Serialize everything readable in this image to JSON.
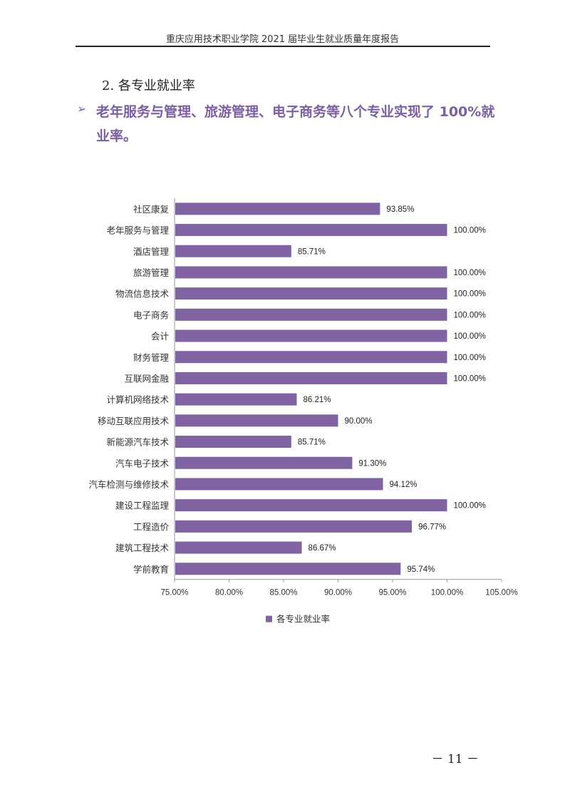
{
  "header": {
    "title": "重庆应用技术职业学院 2021 届毕业生就业质量年度报告"
  },
  "section": {
    "heading": "2. 各专业就业率",
    "highlight": "老年服务与管理、旅游管理、电子商务等八个专业实现了 100%就业率。"
  },
  "chart_data": {
    "type": "bar",
    "orientation": "horizontal",
    "categories": [
      "社区康复",
      "老年服务与管理",
      "酒店管理",
      "旅游管理",
      "物流信息技术",
      "电子商务",
      "会计",
      "财务管理",
      "互联网金融",
      "计算机网络技术",
      "移动互联应用技术",
      "新能源汽车技术",
      "汽车电子技术",
      "汽车检测与维修技术",
      "建设工程监理",
      "工程造价",
      "建筑工程技术",
      "学前教育"
    ],
    "values": [
      93.85,
      100.0,
      85.71,
      100.0,
      100.0,
      100.0,
      100.0,
      100.0,
      100.0,
      86.21,
      90.0,
      85.71,
      91.3,
      94.12,
      100.0,
      96.77,
      86.67,
      95.74
    ],
    "value_labels": [
      "93.85%",
      "100.00%",
      "85.71%",
      "100.00%",
      "100.00%",
      "100.00%",
      "100.00%",
      "100.00%",
      "100.00%",
      "86.21%",
      "90.00%",
      "85.71%",
      "91.30%",
      "94.12%",
      "100.00%",
      "96.77%",
      "86.67%",
      "95.74%"
    ],
    "xlim": [
      75,
      105
    ],
    "xticks": [
      75,
      80,
      85,
      90,
      95,
      100,
      105
    ],
    "xtick_labels": [
      "75.00%",
      "80.00%",
      "85.00%",
      "90.00%",
      "95.00%",
      "100.00%",
      "105.00%"
    ],
    "series": [
      {
        "name": "各专业就业率",
        "color": "#8064a2"
      }
    ],
    "legend_position": "bottom",
    "grid": false
  },
  "footer": {
    "page_number": "－ 11 －"
  }
}
